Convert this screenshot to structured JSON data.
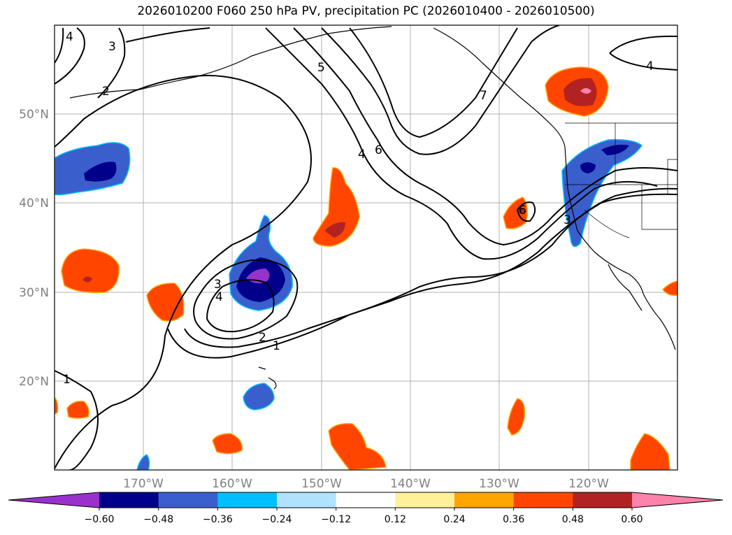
{
  "title": "2026010200 F060 250 hPa PV, precipitation PC (2026010400 - 2026010500)",
  "lat_labels": [
    "50°N",
    "40°N",
    "30°N",
    "20°N"
  ],
  "lon_labels": [
    "170°W",
    "160°W",
    "150°W",
    "140°W",
    "130°W",
    "120°W"
  ],
  "pv_contour_labels": [
    "1",
    "2",
    "3",
    "4",
    "5",
    "6",
    "7",
    "4",
    "4",
    "6",
    "3",
    "3",
    "2",
    "4",
    "1"
  ],
  "colorbar": {
    "tick_labels": [
      "−0.60",
      "−0.48",
      "−0.36",
      "−0.24",
      "−0.12",
      "0.12",
      "0.24",
      "0.36",
      "0.48",
      "0.60"
    ],
    "colors": [
      "#9932cc",
      "#00008b",
      "#3a5fcd",
      "#00bfff",
      "#b0e2ff",
      "#ffffff",
      "#fff09a",
      "#ffa500",
      "#ff4500",
      "#b22222",
      "#ff82ab"
    ]
  },
  "map_colors": {
    "neg_light": "#00bfff",
    "neg_mid": "#3a5fcd",
    "neg_dark": "#00008b",
    "neg_min": "#9932cc",
    "pos_light": "#ffa500",
    "pos_mid": "#ff4500",
    "pos_dark": "#b22222",
    "pos_max": "#ff82ab",
    "pos_edge": "#fff09a",
    "neg_edge": "#b0e2ff"
  }
}
